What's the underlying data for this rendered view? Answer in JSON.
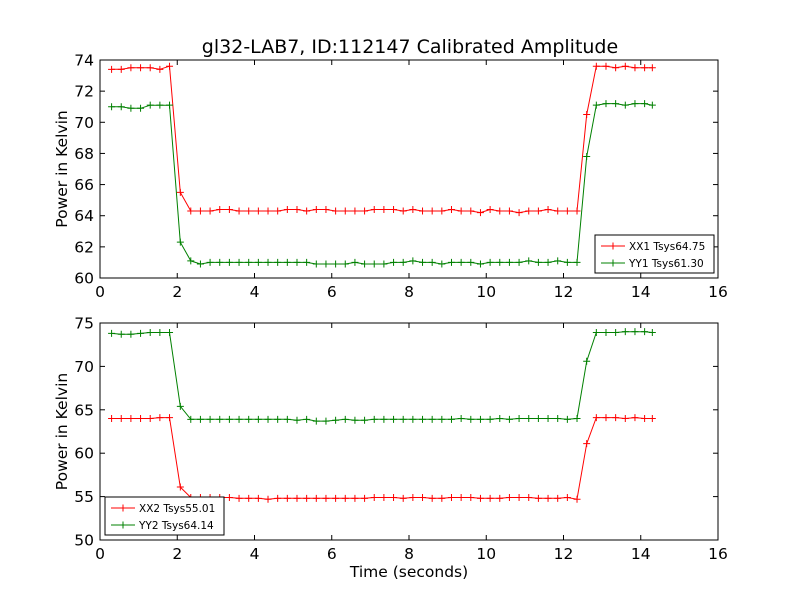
{
  "figure": {
    "title": "gl32-LAB7, ID:112147 Calibrated Amplitude"
  },
  "chart_data": [
    {
      "type": "line",
      "title": "gl32-LAB7, ID:112147 Calibrated Amplitude",
      "xlabel": "",
      "ylabel": "Power in Kelvin",
      "xlim": [
        0,
        16
      ],
      "ylim": [
        60,
        74
      ],
      "xticks": [
        0,
        2,
        4,
        6,
        8,
        10,
        12,
        14,
        16
      ],
      "yticks": [
        60,
        62,
        64,
        66,
        68,
        70,
        72,
        74
      ],
      "grid": false,
      "legend_position": "lower-right",
      "x": [
        0.3,
        0.55,
        0.8,
        1.05,
        1.3,
        1.55,
        1.8,
        2.08,
        2.35,
        2.6,
        2.85,
        3.1,
        3.35,
        3.6,
        3.85,
        4.1,
        4.35,
        4.6,
        4.85,
        5.1,
        5.35,
        5.6,
        5.85,
        6.1,
        6.35,
        6.6,
        6.85,
        7.1,
        7.35,
        7.6,
        7.85,
        8.1,
        8.35,
        8.6,
        8.85,
        9.1,
        9.35,
        9.6,
        9.85,
        10.1,
        10.35,
        10.6,
        10.85,
        11.1,
        11.35,
        11.6,
        11.85,
        12.1,
        12.35,
        12.6,
        12.85,
        13.1,
        13.35,
        13.6,
        13.85,
        14.1,
        14.3
      ],
      "series": [
        {
          "name": "XX1 Tsys64.75",
          "color": "#ff0000",
          "values": [
            73.4,
            73.4,
            73.5,
            73.5,
            73.5,
            73.4,
            73.6,
            65.5,
            64.3,
            64.3,
            64.3,
            64.4,
            64.4,
            64.3,
            64.3,
            64.3,
            64.3,
            64.3,
            64.4,
            64.4,
            64.3,
            64.4,
            64.4,
            64.3,
            64.3,
            64.3,
            64.3,
            64.4,
            64.4,
            64.4,
            64.3,
            64.4,
            64.3,
            64.3,
            64.3,
            64.4,
            64.3,
            64.3,
            64.2,
            64.4,
            64.3,
            64.3,
            64.2,
            64.3,
            64.3,
            64.4,
            64.3,
            64.3,
            64.3,
            70.5,
            73.6,
            73.6,
            73.5,
            73.6,
            73.5,
            73.5,
            73.5
          ]
        },
        {
          "name": "YY1 Tsys61.30",
          "color": "#008000",
          "values": [
            71.0,
            71.0,
            70.9,
            70.9,
            71.1,
            71.1,
            71.1,
            62.3,
            61.1,
            60.9,
            61.0,
            61.0,
            61.0,
            61.0,
            61.0,
            61.0,
            61.0,
            61.0,
            61.0,
            61.0,
            61.0,
            60.9,
            60.9,
            60.9,
            60.9,
            61.0,
            60.9,
            60.9,
            60.9,
            61.0,
            61.0,
            61.1,
            61.0,
            61.0,
            60.9,
            61.0,
            61.0,
            61.0,
            60.9,
            61.0,
            61.0,
            61.0,
            61.0,
            61.1,
            61.0,
            61.0,
            61.1,
            61.0,
            61.0,
            67.8,
            71.1,
            71.2,
            71.2,
            71.1,
            71.2,
            71.2,
            71.1
          ]
        }
      ]
    },
    {
      "type": "line",
      "title": "",
      "xlabel": "Time (seconds)",
      "ylabel": "Power in Kelvin",
      "xlim": [
        0,
        16
      ],
      "ylim": [
        50,
        75
      ],
      "xticks": [
        0,
        2,
        4,
        6,
        8,
        10,
        12,
        14,
        16
      ],
      "yticks": [
        50,
        55,
        60,
        65,
        70,
        75
      ],
      "grid": false,
      "legend_position": "lower-left",
      "x": [
        0.3,
        0.55,
        0.8,
        1.05,
        1.3,
        1.55,
        1.8,
        2.08,
        2.35,
        2.6,
        2.85,
        3.1,
        3.35,
        3.6,
        3.85,
        4.1,
        4.35,
        4.6,
        4.85,
        5.1,
        5.35,
        5.6,
        5.85,
        6.1,
        6.35,
        6.6,
        6.85,
        7.1,
        7.35,
        7.6,
        7.85,
        8.1,
        8.35,
        8.6,
        8.85,
        9.1,
        9.35,
        9.6,
        9.85,
        10.1,
        10.35,
        10.6,
        10.85,
        11.1,
        11.35,
        11.6,
        11.85,
        12.1,
        12.35,
        12.6,
        12.85,
        13.1,
        13.35,
        13.6,
        13.85,
        14.1,
        14.3
      ],
      "series": [
        {
          "name": "XX2 Tsys55.01",
          "color": "#ff0000",
          "values": [
            64.0,
            64.0,
            64.0,
            64.0,
            64.0,
            64.1,
            64.1,
            56.1,
            54.9,
            54.9,
            54.9,
            54.9,
            54.9,
            54.8,
            54.8,
            54.8,
            54.7,
            54.8,
            54.8,
            54.8,
            54.8,
            54.8,
            54.8,
            54.8,
            54.8,
            54.8,
            54.8,
            54.9,
            54.9,
            54.9,
            54.8,
            54.9,
            54.9,
            54.8,
            54.8,
            54.9,
            54.9,
            54.9,
            54.8,
            54.8,
            54.8,
            54.9,
            54.9,
            54.9,
            54.8,
            54.8,
            54.8,
            54.9,
            54.7,
            61.1,
            64.1,
            64.1,
            64.1,
            64.0,
            64.1,
            64.0,
            64.0
          ]
        },
        {
          "name": "YY2 Tsys64.14",
          "color": "#008000",
          "values": [
            73.8,
            73.7,
            73.7,
            73.8,
            73.9,
            73.9,
            73.9,
            65.4,
            63.9,
            63.9,
            63.9,
            63.9,
            63.9,
            63.9,
            63.9,
            63.9,
            63.9,
            63.9,
            63.9,
            63.8,
            63.9,
            63.7,
            63.7,
            63.8,
            63.9,
            63.8,
            63.8,
            63.9,
            63.9,
            63.9,
            63.9,
            63.9,
            63.9,
            63.9,
            63.9,
            63.9,
            64.0,
            63.9,
            63.9,
            63.9,
            64.0,
            63.9,
            64.0,
            64.0,
            64.0,
            64.0,
            64.0,
            63.9,
            64.0,
            70.6,
            73.9,
            73.9,
            73.9,
            74.0,
            74.0,
            74.0,
            73.9
          ]
        }
      ]
    }
  ]
}
